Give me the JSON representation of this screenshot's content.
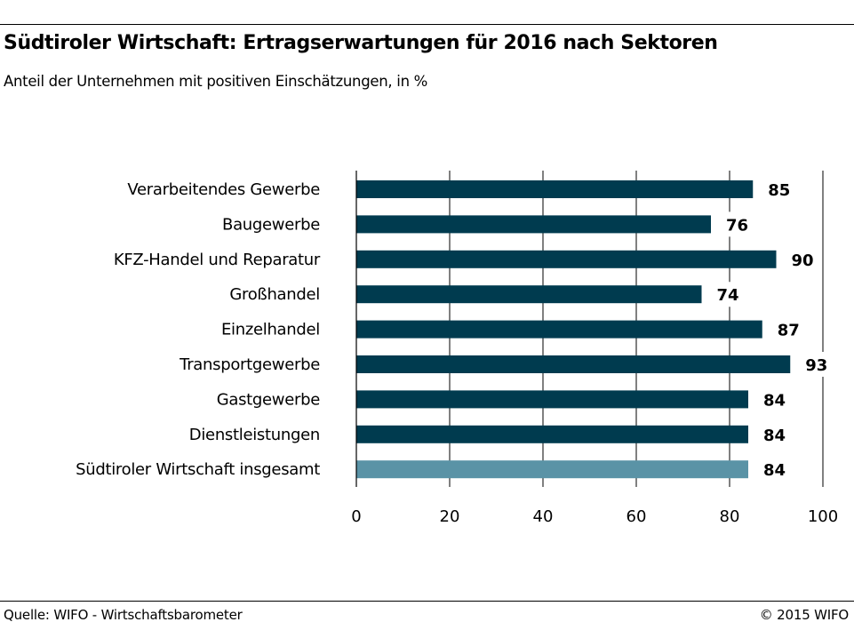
{
  "title": "Südtiroler Wirtschaft: Ertragserwartungen für 2016 nach Sektoren",
  "subtitle": "Anteil der Unternehmen mit positiven Einschätzungen, in %",
  "footer": {
    "source": "Quelle: WIFO - Wirtschaftsbarometer",
    "copyright": "© 2015 WIFO"
  },
  "colors": {
    "bar": "#003b4f",
    "highlight_bar": "#5a93a6",
    "axis": "#000000"
  },
  "chart_data": {
    "type": "bar",
    "orientation": "horizontal",
    "categories": [
      "Verarbeitendes Gewerbe",
      "Baugewerbe",
      "KFZ-Handel und Reparatur",
      "Großhandel",
      "Einzelhandel",
      "Transportgewerbe",
      "Gastgewerbe",
      "Dienstleistungen",
      "Südtiroler Wirtschaft insgesamt"
    ],
    "values": [
      85,
      76,
      90,
      74,
      87,
      93,
      84,
      84,
      84
    ],
    "highlight": [
      false,
      false,
      false,
      false,
      false,
      false,
      false,
      false,
      true
    ],
    "xlim": [
      0,
      100
    ],
    "xticks": [
      0,
      20,
      40,
      60,
      80,
      100
    ],
    "grid": "vertical",
    "data_labels": true
  }
}
